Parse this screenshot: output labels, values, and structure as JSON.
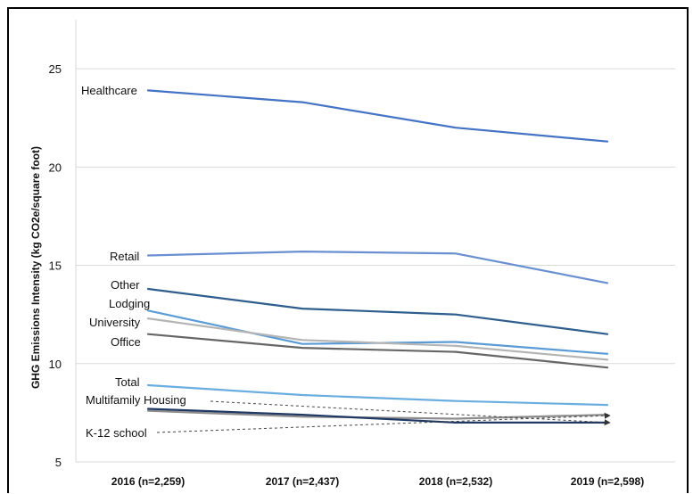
{
  "chart_data": {
    "type": "line",
    "title": "",
    "ylabel": "GHG Emissions Intensity (kg CO2e/square foot)",
    "xlabel": "",
    "categories": [
      "2016 (n=2,259)",
      "2017 (n=2,437)",
      "2018 (n=2,532)",
      "2019 (n=2,598)"
    ],
    "ylim": [
      5,
      27.5
    ],
    "yticks": [
      "5",
      "10",
      "15",
      "20",
      "25"
    ],
    "grid": "horizontal",
    "legend": "inline labels at left",
    "series": [
      {
        "name": "Healthcare",
        "values": [
          23.9,
          23.3,
          22.0,
          21.3
        ],
        "color": "#4472c4"
      },
      {
        "name": "Retail",
        "values": [
          15.5,
          15.7,
          15.6,
          14.1
        ],
        "color": "#6a8fd0"
      },
      {
        "name": "Other",
        "values": [
          13.8,
          12.8,
          12.5,
          11.5
        ],
        "color": "#2e5d8e"
      },
      {
        "name": "Lodging",
        "values": [
          12.7,
          11.0,
          11.1,
          10.5
        ],
        "color": "#5b9bd5"
      },
      {
        "name": "University",
        "values": [
          12.3,
          11.2,
          10.9,
          10.2
        ],
        "color": "#b4b4b4"
      },
      {
        "name": "Office",
        "values": [
          11.5,
          10.8,
          10.6,
          9.8
        ],
        "color": "#666666"
      },
      {
        "name": "Total",
        "values": [
          8.9,
          8.4,
          8.1,
          7.9
        ],
        "color": "#6aaee0"
      },
      {
        "name": "Multifamily Housing",
        "values": [
          7.6,
          7.3,
          7.2,
          7.4
        ],
        "color": "#8c8c8c"
      },
      {
        "name": "K-12 school",
        "values": [
          7.7,
          7.4,
          7.0,
          7.0
        ],
        "color": "#1f3864"
      }
    ]
  }
}
